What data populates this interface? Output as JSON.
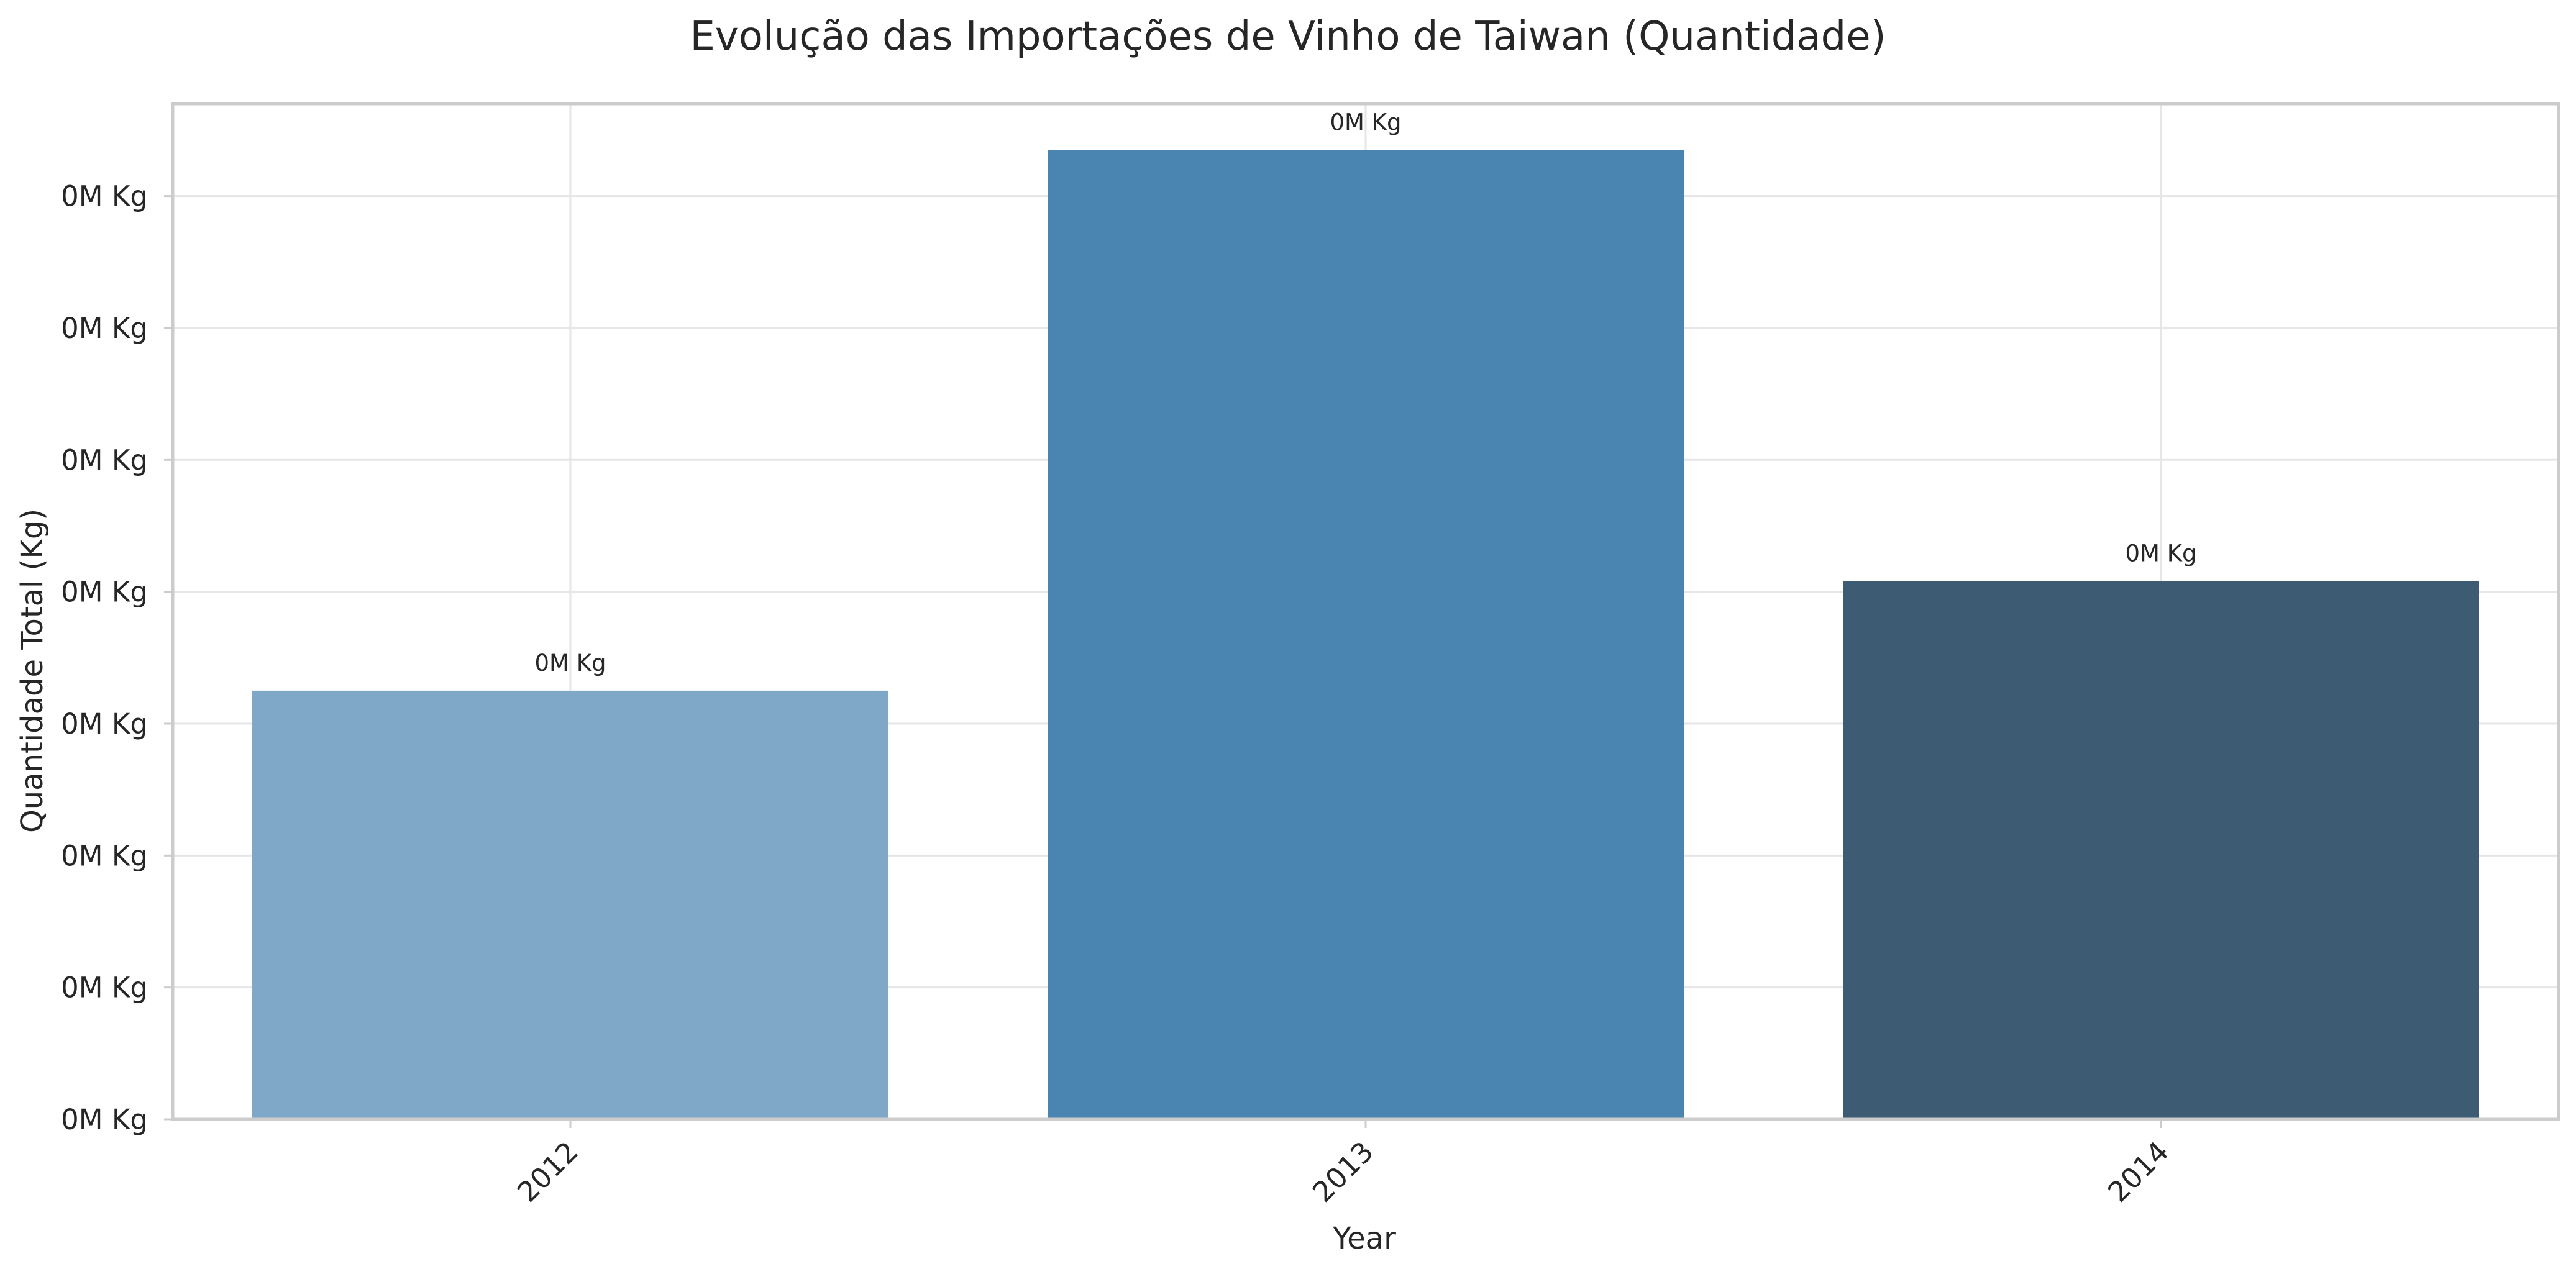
{
  "chart_data": {
    "type": "bar",
    "title": "Evolução das Importações de Vinho de Taiwan (Quantidade)",
    "xlabel": "Year",
    "ylabel": "Quantidade Total (Kg)",
    "categories": [
      "2012",
      "2013",
      "2014"
    ],
    "values": [
      3250,
      7350,
      4080
    ],
    "data_labels": [
      "0M Kg",
      "0M Kg",
      "0M Kg"
    ],
    "colors": [
      "#7fa8c8",
      "#4a84b0",
      "#3d5b72"
    ],
    "ylim": [
      0,
      7700
    ],
    "yticks": [
      0,
      1000,
      2000,
      3000,
      4000,
      5000,
      6000,
      7000
    ],
    "ytick_labels": [
      "0M Kg",
      "0M Kg",
      "0M Kg",
      "0M Kg",
      "0M Kg",
      "0M Kg",
      "0M Kg",
      "0M Kg"
    ],
    "grid": true,
    "xtick_rotation": 45
  }
}
